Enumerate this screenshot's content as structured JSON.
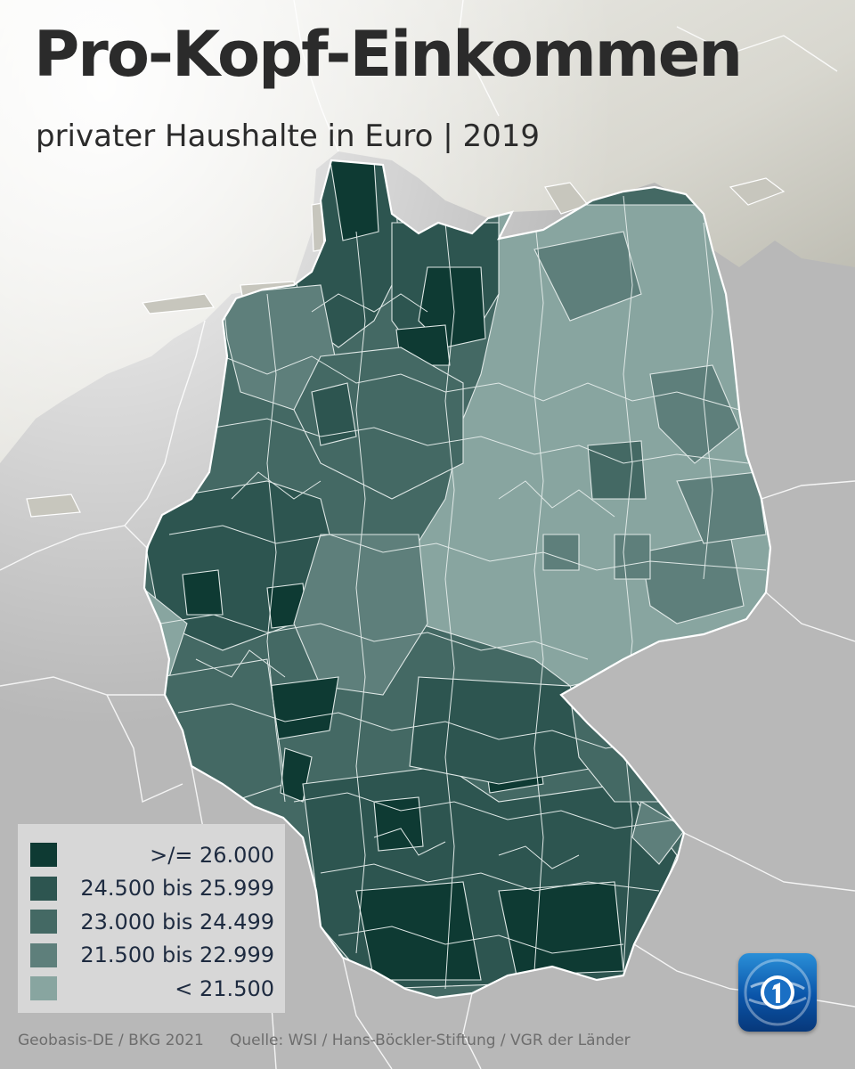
{
  "title": "Pro-Kopf-Einkommen",
  "subtitle": "privater Haushalte in Euro | 2019",
  "legend": [
    {
      "label": ">/= 26.000",
      "color": "#0e3a33"
    },
    {
      "label": "24.500 bis 25.999",
      "color": "#2d5550"
    },
    {
      "label": "23.000 bis 24.499",
      "color": "#446964"
    },
    {
      "label": "21.500 bis 22.999",
      "color": "#5e7f7b"
    },
    {
      "label": "< 21.500",
      "color": "#88a5a0"
    }
  ],
  "footer": {
    "left": "Geobasis-DE / BKG 2021",
    "right": "Quelle: WSI / Hans-Böckler-Stiftung / VGR der Länder"
  },
  "logo_icon": "tagesschau-logo-icon"
}
